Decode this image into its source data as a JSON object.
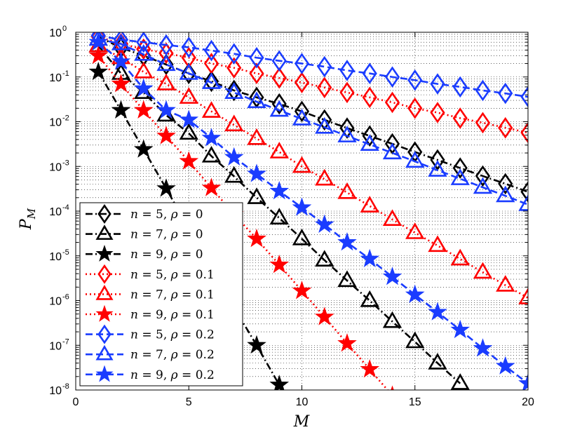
{
  "chart_data": {
    "type": "line",
    "xlabel": "M",
    "ylabel": "P_M",
    "ylabel_base": "P",
    "ylabel_sub": "M",
    "xlim": [
      0,
      20
    ],
    "ylim": [
      1e-08,
      1
    ],
    "yscale": "log",
    "grid": true,
    "legend_position": "bottom-left",
    "xticks": [
      0,
      5,
      10,
      15,
      20
    ],
    "xtick_labels": [
      "0",
      "5",
      "10",
      "15",
      "20"
    ],
    "yticks": [
      1e-08,
      1e-07,
      1e-06,
      1e-05,
      0.0001,
      0.001,
      0.01,
      0.1,
      1
    ],
    "ytick_base": "10",
    "ytick_exponents": [
      "-8",
      "-7",
      "-6",
      "-5",
      "-4",
      "-3",
      "-2",
      "-1",
      "0"
    ],
    "series": [
      {
        "name": "n = 5, ρ = 0",
        "color": "#000000",
        "marker": "diamond",
        "dash": "dashdot",
        "x": [
          1,
          2,
          3,
          4,
          5,
          6,
          7,
          8,
          9,
          10,
          11,
          12,
          13,
          14,
          15,
          16,
          17,
          18,
          19,
          20
        ],
        "y": [
          0.8,
          0.45,
          0.3,
          0.19,
          0.12,
          0.08,
          0.05,
          0.035,
          0.025,
          0.017,
          0.011,
          0.0072,
          0.0048,
          0.0032,
          0.0021,
          0.0014,
          0.00092,
          0.00061,
          0.00041,
          0.00027
        ]
      },
      {
        "name": "n = 7, ρ = 0",
        "color": "#000000",
        "marker": "triangle",
        "dash": "dashdot",
        "x": [
          1,
          2,
          3,
          4,
          5,
          6,
          7,
          8,
          9,
          10,
          11,
          12,
          13,
          14,
          15,
          16,
          17
        ],
        "y": [
          0.5,
          0.12,
          0.045,
          0.014,
          0.0055,
          0.0017,
          0.0006,
          0.0002,
          7e-05,
          2.4e-05,
          8e-06,
          2.8e-06,
          1e-06,
          3.4e-07,
          1.2e-07,
          4e-08,
          1.4e-08
        ]
      },
      {
        "name": "n = 9, ρ = 0",
        "color": "#000000",
        "marker": "star",
        "dash": "dashdot",
        "x": [
          1,
          2,
          3,
          4,
          5,
          6,
          7,
          8,
          9
        ],
        "y": [
          0.13,
          0.018,
          0.0024,
          0.00032,
          4e-05,
          5e-06,
          7e-07,
          1e-07,
          1.3e-08
        ]
      },
      {
        "name": "n = 5, ρ = 0.1",
        "color": "#ff0000",
        "marker": "diamond",
        "dash": "dotted",
        "x": [
          1,
          2,
          3,
          4,
          5,
          6,
          7,
          8,
          9,
          10,
          11,
          12,
          13,
          14,
          15,
          16,
          17,
          18,
          19,
          20
        ],
        "y": [
          0.8,
          0.55,
          0.42,
          0.34,
          0.27,
          0.2,
          0.16,
          0.12,
          0.095,
          0.075,
          0.058,
          0.045,
          0.035,
          0.027,
          0.02,
          0.016,
          0.012,
          0.0095,
          0.0073,
          0.0057
        ]
      },
      {
        "name": "n = 7, ρ = 0.1",
        "color": "#ff0000",
        "marker": "triangle",
        "dash": "dotted",
        "x": [
          1,
          2,
          3,
          4,
          5,
          6,
          7,
          8,
          9,
          10,
          11,
          12,
          13,
          14,
          15,
          16,
          17,
          18,
          19,
          20
        ],
        "y": [
          0.5,
          0.27,
          0.13,
          0.07,
          0.035,
          0.017,
          0.0085,
          0.0042,
          0.0021,
          0.001,
          0.00052,
          0.00026,
          0.00013,
          6.5e-05,
          3.3e-05,
          1.7e-05,
          8.5e-06,
          4.3e-06,
          2.2e-06,
          1.15e-06
        ]
      },
      {
        "name": "n = 9, ρ = 0.1",
        "color": "#ff0000",
        "marker": "star",
        "dash": "dotted",
        "x": [
          1,
          2,
          3,
          4,
          5,
          6,
          7,
          8,
          9,
          10,
          11,
          12,
          13,
          14
        ],
        "y": [
          0.3,
          0.07,
          0.018,
          0.0048,
          0.0013,
          0.00033,
          8.5e-05,
          2.4e-05,
          6.3e-06,
          1.65e-06,
          4.3e-07,
          1.1e-07,
          2.9e-08,
          7.5e-09
        ]
      },
      {
        "name": "n = 5, ρ = 0.2",
        "color": "#1a3cff",
        "marker": "diamond",
        "dash": "dashed",
        "x": [
          1,
          2,
          3,
          4,
          5,
          6,
          7,
          8,
          9,
          10,
          11,
          12,
          13,
          14,
          15,
          16,
          17,
          18,
          19,
          20
        ],
        "y": [
          0.85,
          0.68,
          0.6,
          0.52,
          0.46,
          0.39,
          0.33,
          0.27,
          0.23,
          0.2,
          0.17,
          0.14,
          0.12,
          0.1,
          0.085,
          0.07,
          0.06,
          0.05,
          0.043,
          0.036
        ]
      },
      {
        "name": "n = 7, ρ = 0.2",
        "color": "#1a3cff",
        "marker": "triangle",
        "dash": "dashed",
        "x": [
          1,
          2,
          3,
          4,
          5,
          6,
          7,
          8,
          9,
          10,
          11,
          12,
          13,
          14,
          15,
          16,
          17,
          18,
          19,
          20
        ],
        "y": [
          0.7,
          0.55,
          0.32,
          0.19,
          0.12,
          0.075,
          0.045,
          0.028,
          0.018,
          0.0115,
          0.0075,
          0.0048,
          0.0031,
          0.002,
          0.0013,
          0.00082,
          0.00053,
          0.00034,
          0.00022,
          0.00014
        ]
      },
      {
        "name": "n = 9, ρ = 0.2",
        "color": "#1a3cff",
        "marker": "star",
        "dash": "dashed",
        "x": [
          1,
          2,
          3,
          4,
          5,
          6,
          7,
          8,
          9,
          10,
          11,
          12,
          13,
          14,
          15,
          16,
          17,
          18,
          19,
          20
        ],
        "y": [
          0.6,
          0.22,
          0.055,
          0.018,
          0.011,
          0.0043,
          0.0016,
          0.00068,
          0.00028,
          0.00012,
          5e-05,
          2e-05,
          8.5e-06,
          3.4e-06,
          1.35e-06,
          5.5e-07,
          2.2e-07,
          8.5e-08,
          3.4e-08,
          1.4e-08
        ]
      }
    ],
    "legend": {
      "entries": [
        {
          "n": "n",
          "nval": "5",
          "rho": "ρ",
          "rval": "0"
        },
        {
          "n": "n",
          "nval": "7",
          "rho": "ρ",
          "rval": "0"
        },
        {
          "n": "n",
          "nval": "9",
          "rho": "ρ",
          "rval": "0"
        },
        {
          "n": "n",
          "nval": "5",
          "rho": "ρ",
          "rval": "0.1"
        },
        {
          "n": "n",
          "nval": "7",
          "rho": "ρ",
          "rval": "0.1"
        },
        {
          "n": "n",
          "nval": "9",
          "rho": "ρ",
          "rval": "0.1"
        },
        {
          "n": "n",
          "nval": "5",
          "rho": "ρ",
          "rval": "0.2"
        },
        {
          "n": "n",
          "nval": "7",
          "rho": "ρ",
          "rval": "0.2"
        },
        {
          "n": "n",
          "nval": "9",
          "rho": "ρ",
          "rval": "0.2"
        }
      ]
    }
  }
}
